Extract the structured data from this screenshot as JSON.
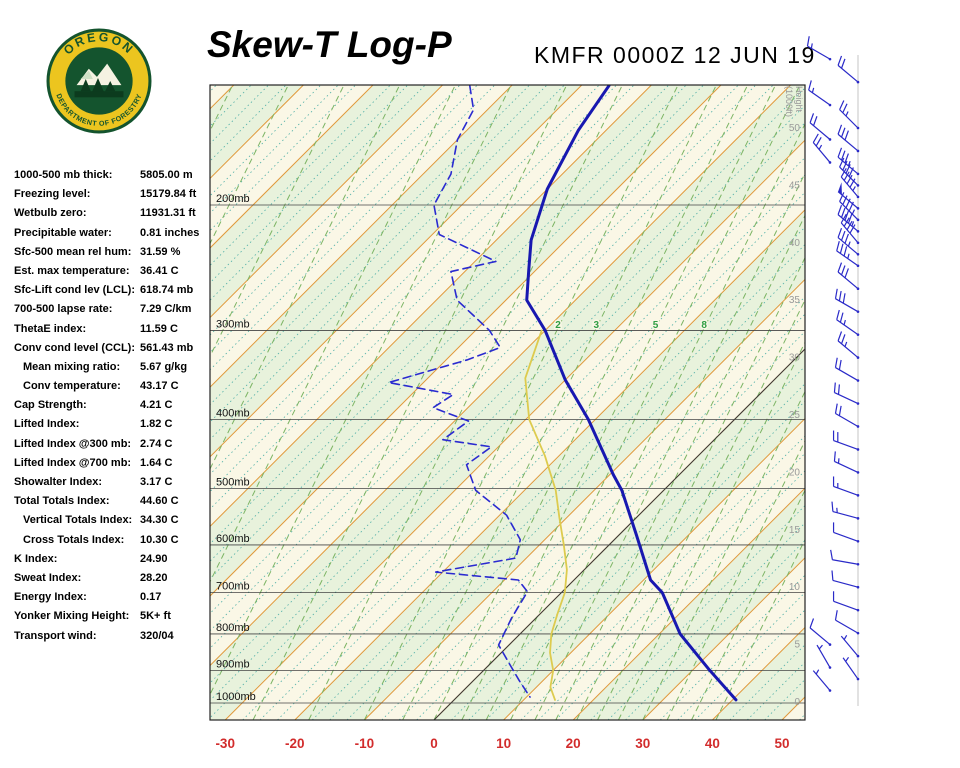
{
  "header": {
    "title": "Skew-T Log-P",
    "station_line": "KMFR 0000Z 12 JUN 19"
  },
  "logo": {
    "arc_top": "OREGON",
    "arc_bottom": "DEPARTMENT OF FORESTRY"
  },
  "stats": [
    {
      "label": "1000-500 mb thick:",
      "value": "5805.00 m"
    },
    {
      "label": "Freezing level:",
      "value": "15179.84 ft"
    },
    {
      "label": "Wetbulb zero:",
      "value": "11931.31 ft"
    },
    {
      "label": "Precipitable water:",
      "value": "0.81 inches"
    },
    {
      "label": "Sfc-500 mean rel hum:",
      "value": "31.59 %"
    },
    {
      "label": "Est. max temperature:",
      "value": "36.41 C"
    },
    {
      "label": "Sfc-Lift cond lev (LCL):",
      "value": "618.74 mb"
    },
    {
      "label": "700-500 lapse rate:",
      "value": "7.29 C/km"
    },
    {
      "label": "ThetaE index:",
      "value": "11.59 C"
    },
    {
      "label": "Conv cond level (CCL):",
      "value": "561.43 mb"
    },
    {
      "label": "Mean mixing ratio:",
      "value": "5.67 g/kg",
      "indent": true
    },
    {
      "label": "Conv temperature:",
      "value": "43.17 C",
      "indent": true
    },
    {
      "label": "Cap Strength:",
      "value": "4.21 C"
    },
    {
      "label": "Lifted Index:",
      "value": "1.82 C"
    },
    {
      "label": "Lifted Index @300 mb:",
      "value": "2.74 C"
    },
    {
      "label": "Lifted Index @700 mb:",
      "value": "1.64 C"
    },
    {
      "label": "Showalter Index:",
      "value": "3.17 C"
    },
    {
      "label": "Total Totals Index:",
      "value": "44.60 C"
    },
    {
      "label": "Vertical Totals Index:",
      "value": "34.30 C",
      "indent": true
    },
    {
      "label": "Cross Totals Index:",
      "value": "10.30 C",
      "indent": true
    },
    {
      "label": "K Index:",
      "value": "24.90"
    },
    {
      "label": "Sweat Index:",
      "value": "28.20"
    },
    {
      "label": "Energy Index:",
      "value": "0.17"
    },
    {
      "label": "Yonker Mixing Height:",
      "value": "5K+ ft"
    },
    {
      "label": "Transport wind:",
      "value": "320/04"
    }
  ],
  "chart_data": {
    "type": "line",
    "title": "Skew-T Log-P",
    "station": "KMFR",
    "valid_time": "0000Z 12 JUN 19",
    "x_axis": {
      "unit": "C",
      "ticks": [
        -30,
        -20,
        -10,
        0,
        10,
        20,
        30,
        40,
        50
      ]
    },
    "pressure_axis": {
      "label_suffix": "mb",
      "ticks_mb": [
        200,
        300,
        400,
        500,
        600,
        700,
        800,
        900,
        1000
      ]
    },
    "height_axis": {
      "title_lines": [
        "Height",
        "(1000ft)"
      ],
      "ticks": [
        50,
        45,
        40,
        35,
        30,
        25,
        20,
        15,
        10,
        5,
        0
      ]
    },
    "mixing_lines_td1000": [
      -98,
      -90,
      -82,
      -74,
      -66,
      -58,
      -50,
      -42,
      -34,
      -26,
      -18,
      -10,
      -4.5,
      0,
      4,
      7.5,
      11,
      14.5,
      17.5,
      20.5,
      23.5,
      26.5,
      30,
      33.5,
      37,
      40.5
    ],
    "mixing_ratio_labels": {
      "unit": "g/kg",
      "items": [
        [
          2,
          -10
        ],
        [
          3,
          -4.5
        ],
        [
          5,
          4
        ],
        [
          8,
          11
        ]
      ]
    },
    "series": [
      {
        "name": "wetbulb",
        "color": "#ddcb4e",
        "width": 1.8,
        "dash": null,
        "points": [
          [
            300,
            -40.5
          ],
          [
            350,
            -36
          ],
          [
            400,
            -29.5
          ],
          [
            450,
            -22
          ],
          [
            503,
            -15.5
          ],
          [
            550,
            -11
          ],
          [
            600,
            -6.5
          ],
          [
            650,
            -2.5
          ],
          [
            700,
            0.5
          ],
          [
            750,
            2.5
          ],
          [
            800,
            4.5
          ],
          [
            850,
            7
          ],
          [
            900,
            10
          ],
          [
            950,
            12
          ],
          [
            990,
            14.5
          ]
        ]
      },
      {
        "name": "dewpoint",
        "color": "#2a2ad0",
        "width": 1.6,
        "dash": "8 5",
        "points": [
          [
            136,
            -86
          ],
          [
            147,
            -82
          ],
          [
            162,
            -80
          ],
          [
            181,
            -76
          ],
          [
            200,
            -74
          ],
          [
            220,
            -69
          ],
          [
            240,
            -57
          ],
          [
            248,
            -62
          ],
          [
            272,
            -57
          ],
          [
            300,
            -48
          ],
          [
            317,
            -44
          ],
          [
            330,
            -47
          ],
          [
            355,
            -55
          ],
          [
            369,
            -44
          ],
          [
            385,
            -45
          ],
          [
            402,
            -38
          ],
          [
            427,
            -39
          ],
          [
            437,
            -31
          ],
          [
            463,
            -32
          ],
          [
            503,
            -27
          ],
          [
            545,
            -19
          ],
          [
            590,
            -13.5
          ],
          [
            626,
            -11.5
          ],
          [
            655,
            -21
          ],
          [
            672,
            -8
          ],
          [
            698,
            -5
          ],
          [
            760,
            -3.5
          ],
          [
            829,
            -1.5
          ],
          [
            884,
            3
          ],
          [
            929,
            6.5
          ],
          [
            981,
            10.5
          ]
        ]
      },
      {
        "name": "temperature",
        "color": "#1818b0",
        "width": 3,
        "dash": null,
        "points": [
          [
            136,
            -66
          ],
          [
            157,
            -64
          ],
          [
            190,
            -60
          ],
          [
            224,
            -55
          ],
          [
            247,
            -51
          ],
          [
            272,
            -47
          ],
          [
            300,
            -40
          ],
          [
            352,
            -30
          ],
          [
            400,
            -21
          ],
          [
            478,
            -9.5
          ],
          [
            503,
            -6
          ],
          [
            581,
            2.5
          ],
          [
            672,
            11
          ],
          [
            700,
            14.5
          ],
          [
            800,
            23
          ],
          [
            900,
            32.5
          ],
          [
            990,
            40.5
          ]
        ]
      }
    ],
    "winds": {
      "unit": "kt",
      "barb_levels_kft_dir_spd_col": [
        [
          56,
          300,
          15,
          1
        ],
        [
          54,
          310,
          20,
          0
        ],
        [
          52,
          305,
          15,
          1
        ],
        [
          50,
          315,
          25,
          0
        ],
        [
          49,
          310,
          20,
          1
        ],
        [
          48,
          310,
          30,
          0
        ],
        [
          47,
          320,
          25,
          1
        ],
        [
          46,
          310,
          35,
          0
        ],
        [
          45,
          315,
          40,
          0
        ],
        [
          44,
          320,
          45,
          0
        ],
        [
          43,
          310,
          50,
          0
        ],
        [
          42,
          315,
          45,
          0
        ],
        [
          41,
          310,
          45,
          0
        ],
        [
          40,
          320,
          40,
          0
        ],
        [
          39,
          310,
          35,
          0
        ],
        [
          38,
          305,
          35,
          0
        ],
        [
          36,
          310,
          30,
          0
        ],
        [
          34,
          300,
          28,
          0
        ],
        [
          32,
          305,
          25,
          0
        ],
        [
          30,
          310,
          25,
          0
        ],
        [
          28,
          300,
          22,
          0
        ],
        [
          26,
          295,
          20,
          0
        ],
        [
          24,
          300,
          20,
          0
        ],
        [
          22,
          290,
          18,
          0
        ],
        [
          20,
          295,
          15,
          0
        ],
        [
          18,
          290,
          15,
          0
        ],
        [
          16,
          285,
          15,
          0
        ],
        [
          14,
          290,
          12,
          0
        ],
        [
          12,
          280,
          10,
          0
        ],
        [
          10,
          285,
          10,
          0
        ],
        [
          8,
          290,
          10,
          0
        ],
        [
          6,
          300,
          8,
          0
        ],
        [
          5,
          310,
          8,
          1
        ],
        [
          4,
          320,
          5,
          0
        ],
        [
          3,
          330,
          5,
          1
        ],
        [
          2,
          325,
          5,
          0
        ],
        [
          1,
          320,
          4,
          1
        ]
      ]
    },
    "colors": {
      "band_cream": "#faf7e6",
      "band_green": "#e8f2dc",
      "isotherm": "#e0983a",
      "dotted": "#52b0a8",
      "mixing": "#7cb464",
      "zero_line": "#3a3a3a",
      "axis_red": "#d22c2c",
      "profile_blue": "#1818b0",
      "wind_blue": "#2a2ac8",
      "mixing_label_green": "#2f9e44"
    }
  }
}
